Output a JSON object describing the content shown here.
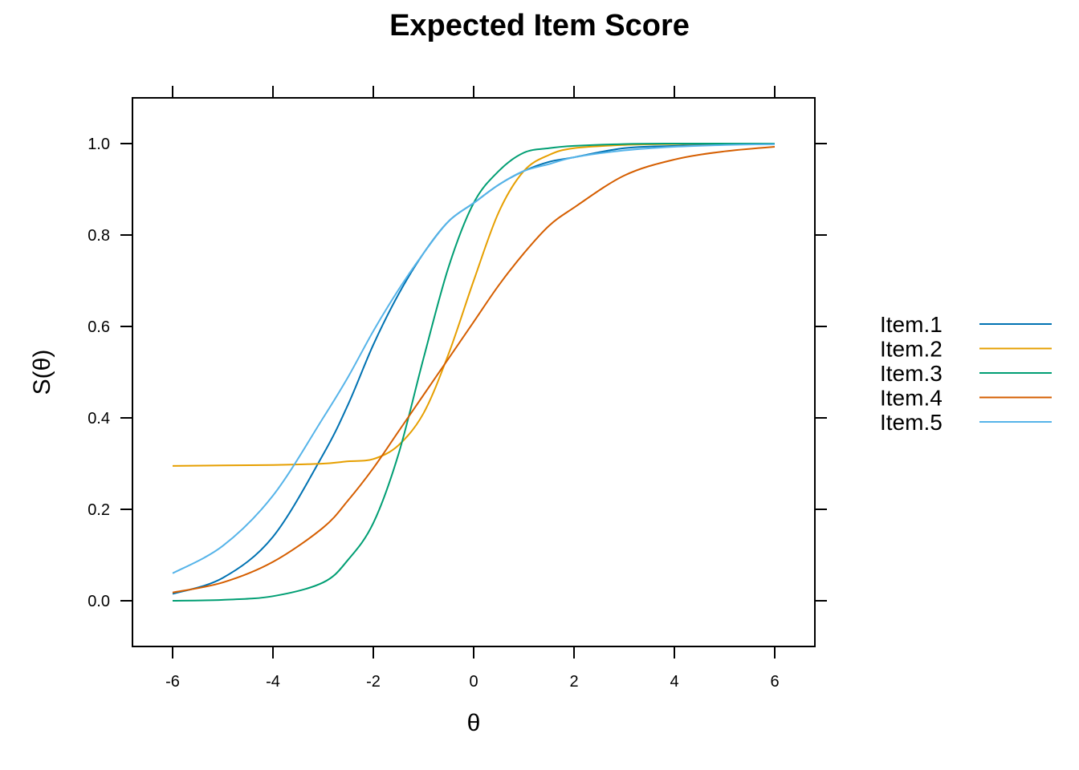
{
  "chart_data": {
    "type": "line",
    "title": "Expected Item Score",
    "xlabel": "θ",
    "ylabel": "S(θ)",
    "xlim": [
      -6.8,
      6.8
    ],
    "ylim": [
      -0.1,
      1.1
    ],
    "xticks": [
      -6,
      -4,
      -2,
      0,
      2,
      4,
      6
    ],
    "yticks": [
      0.0,
      0.2,
      0.4,
      0.6,
      0.8,
      1.0
    ],
    "xtick_labels": [
      "-6",
      "-4",
      "-2",
      "0",
      "2",
      "4",
      "6"
    ],
    "ytick_labels": [
      "0.0",
      "0.2",
      "0.4",
      "0.6",
      "0.8",
      "1.0"
    ],
    "grid": false,
    "legend_position": "right",
    "x": [
      -6,
      -5,
      -4,
      -3,
      -2.5,
      -2,
      -1.5,
      -1,
      -0.5,
      0,
      0.5,
      1,
      1.5,
      2,
      3,
      4,
      5,
      6
    ],
    "series": [
      {
        "name": "Item.1",
        "color": "#0072B2",
        "values": [
          0.015,
          0.05,
          0.14,
          0.32,
          0.43,
          0.56,
          0.67,
          0.76,
          0.83,
          0.87,
          0.91,
          0.94,
          0.96,
          0.97,
          0.99,
          0.995,
          0.998,
          0.999
        ]
      },
      {
        "name": "Item.2",
        "color": "#E69F00",
        "values": [
          0.295,
          0.296,
          0.297,
          0.3,
          0.305,
          0.31,
          0.34,
          0.41,
          0.54,
          0.7,
          0.85,
          0.94,
          0.975,
          0.99,
          0.997,
          0.999,
          1.0,
          1.0
        ]
      },
      {
        "name": "Item.3",
        "color": "#009E73",
        "values": [
          0.0,
          0.002,
          0.01,
          0.04,
          0.09,
          0.17,
          0.32,
          0.53,
          0.73,
          0.87,
          0.94,
          0.98,
          0.99,
          0.995,
          0.999,
          1.0,
          1.0,
          1.0
        ]
      },
      {
        "name": "Item.4",
        "color": "#D55E00",
        "values": [
          0.018,
          0.04,
          0.085,
          0.16,
          0.22,
          0.29,
          0.37,
          0.45,
          0.53,
          0.61,
          0.69,
          0.76,
          0.82,
          0.86,
          0.93,
          0.965,
          0.983,
          0.993
        ]
      },
      {
        "name": "Item.5",
        "color": "#56B4E9",
        "values": [
          0.06,
          0.12,
          0.23,
          0.4,
          0.49,
          0.59,
          0.68,
          0.76,
          0.83,
          0.87,
          0.91,
          0.94,
          0.955,
          0.97,
          0.985,
          0.993,
          0.997,
          0.999
        ]
      }
    ]
  }
}
